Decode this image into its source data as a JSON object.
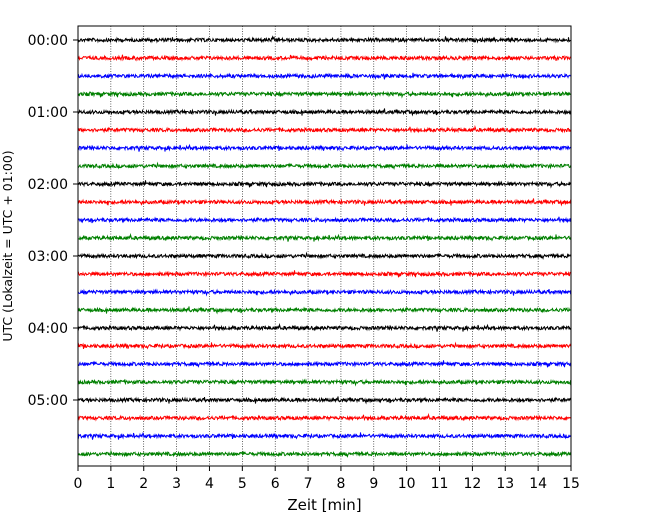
{
  "chart_data": {
    "type": "line",
    "title": "",
    "xlabel": "Zeit  [min]",
    "ylabel": "UTC (Lokalzeit = UTC + 01:00)",
    "xlim": [
      0,
      15
    ],
    "x_ticks": [
      "0",
      "1",
      "2",
      "3",
      "4",
      "5",
      "6",
      "7",
      "8",
      "9",
      "10",
      "11",
      "12",
      "13",
      "14",
      "15"
    ],
    "y_ticks": [
      "00:00",
      "01:00",
      "02:00",
      "03:00",
      "04:00",
      "05:00"
    ],
    "trace_interval_minutes": 15,
    "trace_count": 24,
    "trace_colors": [
      "#000000",
      "#ff0000",
      "#0000ff",
      "#008000"
    ],
    "grid": "vertical dotted lines at each minute",
    "legend": "none"
  }
}
